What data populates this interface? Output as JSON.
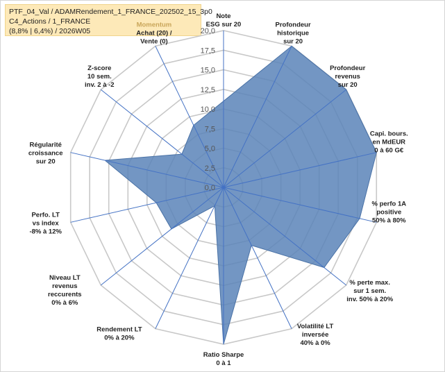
{
  "info": {
    "line1": "PTF_04_Val / ADAMRendement_1_FRANCE_202502_15_3p0",
    "line2": "C4_Actions / 1_FRANCE",
    "line3": "(8,8% | 6,4%) / 2026W05"
  },
  "colors": {
    "area_fill": "#5b84b8",
    "area_stroke": "#4a72a6",
    "spoke": "#4472c4",
    "ring": "#c8c8c8",
    "highlight_label": "#c9a65a"
  },
  "chart_data": {
    "type": "radar",
    "title": "",
    "range": [
      0,
      20
    ],
    "ticks": [
      "0,0",
      "2,5",
      "5,0",
      "7,5",
      "10,0",
      "12,5",
      "15,0",
      "17,5",
      "20,0"
    ],
    "axes": [
      {
        "lines": [
          "Note",
          "ESG sur 20"
        ],
        "value": 11
      },
      {
        "lines": [
          "Profondeur",
          "historique",
          "sur 20"
        ],
        "value": 20
      },
      {
        "lines": [
          "Profondeur",
          "revenus",
          "sur 20"
        ],
        "value": 20
      },
      {
        "lines": [
          "Capi. bours.",
          "en MdEUR",
          "0 à 60 G€"
        ],
        "value": 20
      },
      {
        "lines": [
          "% perfo 1A",
          "positive",
          "50% à 80%"
        ],
        "value": 17.8
      },
      {
        "lines": [
          "% perte max.",
          "sur 1 sem.",
          "inv. 50% à 20%"
        ],
        "value": 16.4
      },
      {
        "lines": [
          "Volatilité LT",
          "inversée",
          "40% à 0%"
        ],
        "value": 8.2
      },
      {
        "lines": [
          "Ratio Sharpe",
          "0 à 1"
        ],
        "value": 20
      },
      {
        "lines": [
          "Rendement LT",
          "0% à 20%"
        ],
        "value": 2.6
      },
      {
        "lines": [
          "Niveau LT",
          "revenus",
          "reccurents",
          "0% à 6%"
        ],
        "value": 8.5
      },
      {
        "lines": [
          "Perfo. LT",
          "vs index",
          "-8% à 12%"
        ],
        "value": 8.8
      },
      {
        "lines": [
          "Régularité",
          "croissance",
          "sur 20"
        ],
        "value": 15.5
      },
      {
        "lines": [
          "Z-score",
          "10 sem.",
          "inv. 2 à -2"
        ],
        "value": 6.8
      },
      {
        "lines": [
          "Momentum",
          "Achat (20) /",
          "Vente (0)"
        ],
        "value": 8.8,
        "highlight_first": true
      }
    ]
  }
}
